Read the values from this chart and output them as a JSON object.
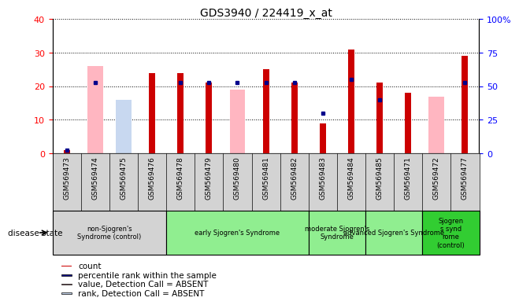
{
  "title": "GDS3940 / 224419_x_at",
  "samples": [
    "GSM569473",
    "GSM569474",
    "GSM569475",
    "GSM569476",
    "GSM569478",
    "GSM569479",
    "GSM569480",
    "GSM569481",
    "GSM569482",
    "GSM569483",
    "GSM569484",
    "GSM569485",
    "GSM569471",
    "GSM569472",
    "GSM569477"
  ],
  "count": [
    1,
    0,
    0,
    24,
    24,
    21,
    0,
    25,
    21,
    9,
    31,
    21,
    18,
    0,
    29
  ],
  "percentile_rank": [
    1,
    21,
    0,
    0,
    21,
    21,
    21,
    21,
    21,
    12,
    22,
    16,
    0,
    0,
    21
  ],
  "value_absent": [
    0,
    26,
    15,
    0,
    0,
    0,
    19,
    0,
    0,
    0,
    0,
    0,
    0,
    17,
    0
  ],
  "rank_absent": [
    0,
    0,
    16,
    0,
    0,
    0,
    0,
    0,
    0,
    0,
    0,
    0,
    0,
    0,
    0
  ],
  "groups": [
    {
      "label": "non-Sjogren's\nSyndrome (control)",
      "start": 0,
      "end": 4,
      "color": "#d3d3d3"
    },
    {
      "label": "early Sjogren's Syndrome",
      "start": 4,
      "end": 9,
      "color": "#90EE90"
    },
    {
      "label": "moderate Sjogren's\nSyndrome",
      "start": 9,
      "end": 11,
      "color": "#90EE90"
    },
    {
      "label": "advanced Sjogren's Syndrome",
      "start": 11,
      "end": 13,
      "color": "#90EE90"
    },
    {
      "label": "Sjogren\ns synd\nrome\n(control)",
      "start": 13,
      "end": 15,
      "color": "#32cd32"
    }
  ],
  "ylim_left": [
    0,
    40
  ],
  "ylim_right": [
    0,
    100
  ],
  "yticks_left": [
    0,
    10,
    20,
    30,
    40
  ],
  "yticks_right": [
    0,
    25,
    50,
    75,
    100
  ],
  "color_count": "#cc0000",
  "color_percentile": "#00008B",
  "color_value_absent": "#ffb6c1",
  "color_rank_absent": "#c8d8f0",
  "disease_state_label": "disease state"
}
